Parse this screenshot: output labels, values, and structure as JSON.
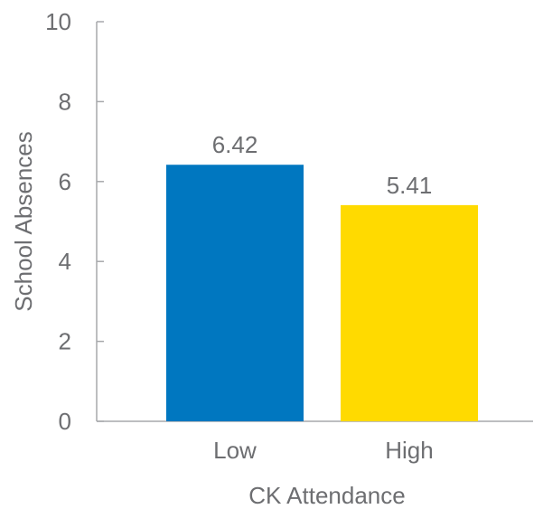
{
  "chart_data": {
    "type": "bar",
    "categories": [
      "Low",
      "High"
    ],
    "values": [
      6.42,
      5.41
    ],
    "value_labels": [
      "6.42",
      "5.41"
    ],
    "colors": [
      "#0077c0",
      "#ffda00"
    ],
    "xlabel": "CK Attendance",
    "ylabel": "School Absences",
    "ylim": [
      0,
      10
    ],
    "yticks": [
      0,
      2,
      4,
      6,
      8,
      10
    ],
    "ytick_labels": [
      "0",
      "2",
      "4",
      "6",
      "8",
      "10"
    ],
    "grid": false,
    "legend": "none"
  }
}
